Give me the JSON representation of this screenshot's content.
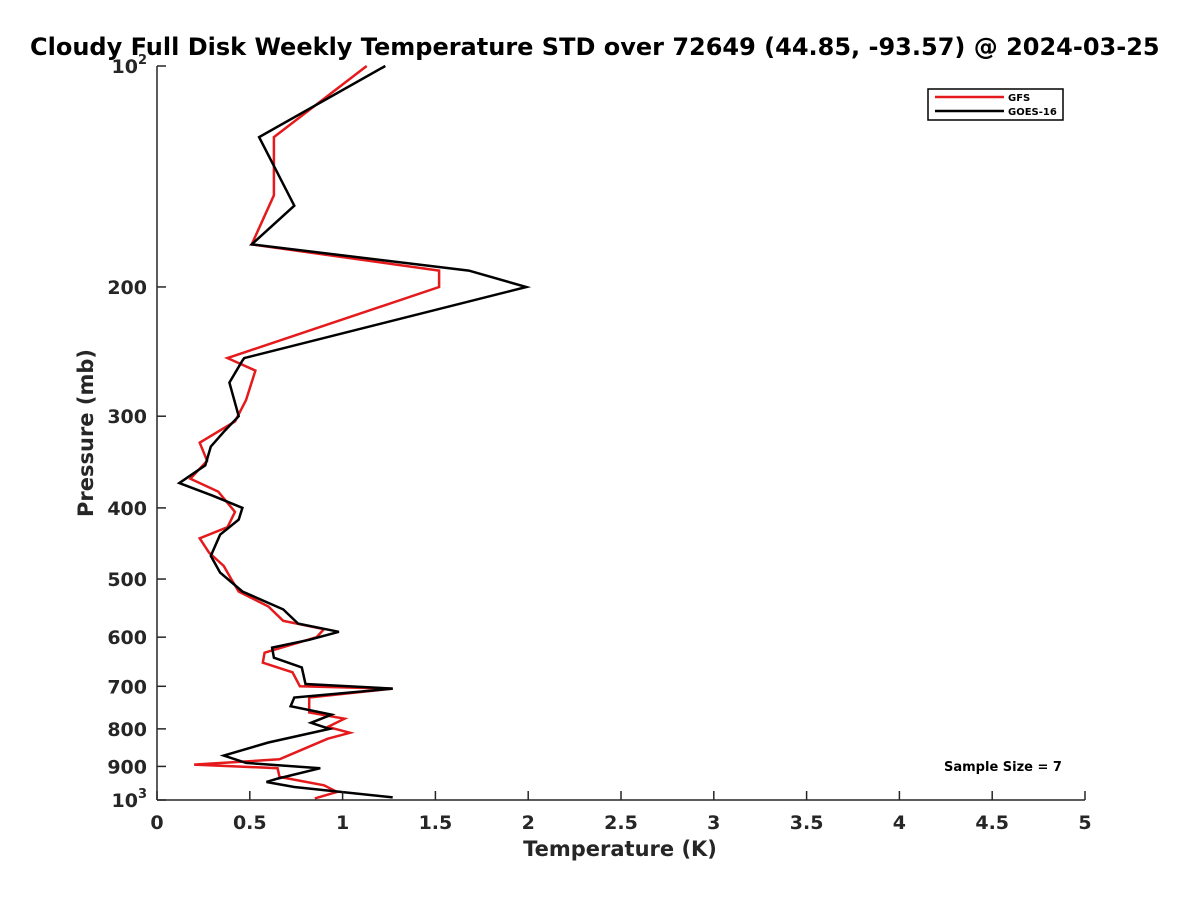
{
  "chart_data": {
    "type": "line",
    "title": "Cloudy Full Disk Weekly Temperature STD over 72649 (44.85, -93.57) @ 2024-03-25",
    "xlabel": "Temperature (K)",
    "ylabel": "Pressure (mb)",
    "xlim": [
      0,
      5
    ],
    "ylim": [
      100,
      1000
    ],
    "y_scale": "log",
    "y_reversed": true,
    "grid": false,
    "legend_position": "top-right",
    "x_ticks": [
      {
        "value": 0,
        "label": "0"
      },
      {
        "value": 0.5,
        "label": "0.5"
      },
      {
        "value": 1,
        "label": "1"
      },
      {
        "value": 1.5,
        "label": "1.5"
      },
      {
        "value": 2,
        "label": "2"
      },
      {
        "value": 2.5,
        "label": "2.5"
      },
      {
        "value": 3,
        "label": "3"
      },
      {
        "value": 3.5,
        "label": "3.5"
      },
      {
        "value": 4,
        "label": "4"
      },
      {
        "value": 4.5,
        "label": "4.5"
      },
      {
        "value": 5,
        "label": "5"
      }
    ],
    "y_ticks": [
      {
        "value": 100,
        "label": "10",
        "sup": "2"
      },
      {
        "value": 200,
        "label": "200",
        "sup": ""
      },
      {
        "value": 300,
        "label": "300",
        "sup": ""
      },
      {
        "value": 400,
        "label": "400",
        "sup": ""
      },
      {
        "value": 500,
        "label": "500",
        "sup": ""
      },
      {
        "value": 600,
        "label": "600",
        "sup": ""
      },
      {
        "value": 700,
        "label": "700",
        "sup": ""
      },
      {
        "value": 800,
        "label": "800",
        "sup": ""
      },
      {
        "value": 900,
        "label": "900",
        "sup": ""
      },
      {
        "value": 1000,
        "label": "10",
        "sup": "3"
      }
    ],
    "annotation": "Sample Size = 7",
    "series": [
      {
        "name": "GFS",
        "color": "#e41a1c",
        "points": [
          [
            1.13,
            100
          ],
          [
            0.63,
            125
          ],
          [
            0.63,
            150
          ],
          [
            0.51,
            175
          ],
          [
            1.52,
            190
          ],
          [
            1.52,
            200
          ],
          [
            0.38,
            250
          ],
          [
            0.53,
            260
          ],
          [
            0.48,
            285
          ],
          [
            0.42,
            305
          ],
          [
            0.23,
            326
          ],
          [
            0.27,
            345
          ],
          [
            0.18,
            365
          ],
          [
            0.33,
            380
          ],
          [
            0.42,
            405
          ],
          [
            0.38,
            425
          ],
          [
            0.23,
            440
          ],
          [
            0.28,
            460
          ],
          [
            0.36,
            480
          ],
          [
            0.4,
            500
          ],
          [
            0.44,
            520
          ],
          [
            0.6,
            545
          ],
          [
            0.68,
            570
          ],
          [
            0.9,
            585
          ],
          [
            0.86,
            600
          ],
          [
            0.58,
            630
          ],
          [
            0.57,
            650
          ],
          [
            0.73,
            670
          ],
          [
            0.77,
            700
          ],
          [
            1.27,
            705
          ],
          [
            0.82,
            725
          ],
          [
            0.82,
            760
          ],
          [
            1.01,
            775
          ],
          [
            0.92,
            795
          ],
          [
            1.04,
            810
          ],
          [
            0.92,
            825
          ],
          [
            0.8,
            850
          ],
          [
            0.66,
            880
          ],
          [
            0.2,
            895
          ],
          [
            0.65,
            905
          ],
          [
            0.66,
            930
          ],
          [
            0.9,
            955
          ],
          [
            0.97,
            975
          ],
          [
            0.85,
            995
          ]
        ]
      },
      {
        "name": "GOES-16",
        "color": "#000000",
        "points": [
          [
            1.23,
            100
          ],
          [
            0.55,
            125
          ],
          [
            0.74,
            155
          ],
          [
            0.51,
            175
          ],
          [
            1.68,
            190
          ],
          [
            1.99,
            200
          ],
          [
            0.47,
            250
          ],
          [
            0.46,
            252
          ],
          [
            0.39,
            270
          ],
          [
            0.44,
            300
          ],
          [
            0.36,
            315
          ],
          [
            0.29,
            330
          ],
          [
            0.26,
            350
          ],
          [
            0.12,
            370
          ],
          [
            0.3,
            385
          ],
          [
            0.46,
            400
          ],
          [
            0.44,
            415
          ],
          [
            0.34,
            435
          ],
          [
            0.29,
            465
          ],
          [
            0.34,
            490
          ],
          [
            0.46,
            520
          ],
          [
            0.68,
            550
          ],
          [
            0.76,
            575
          ],
          [
            0.98,
            590
          ],
          [
            0.82,
            605
          ],
          [
            0.62,
            620
          ],
          [
            0.63,
            640
          ],
          [
            0.78,
            660
          ],
          [
            0.8,
            695
          ],
          [
            1.27,
            705
          ],
          [
            0.74,
            725
          ],
          [
            0.72,
            745
          ],
          [
            0.94,
            765
          ],
          [
            0.83,
            785
          ],
          [
            0.93,
            800
          ],
          [
            0.6,
            835
          ],
          [
            0.36,
            870
          ],
          [
            0.48,
            890
          ],
          [
            0.88,
            905
          ],
          [
            0.65,
            935
          ],
          [
            0.59,
            945
          ],
          [
            0.74,
            960
          ],
          [
            1.27,
            992
          ]
        ]
      }
    ]
  }
}
